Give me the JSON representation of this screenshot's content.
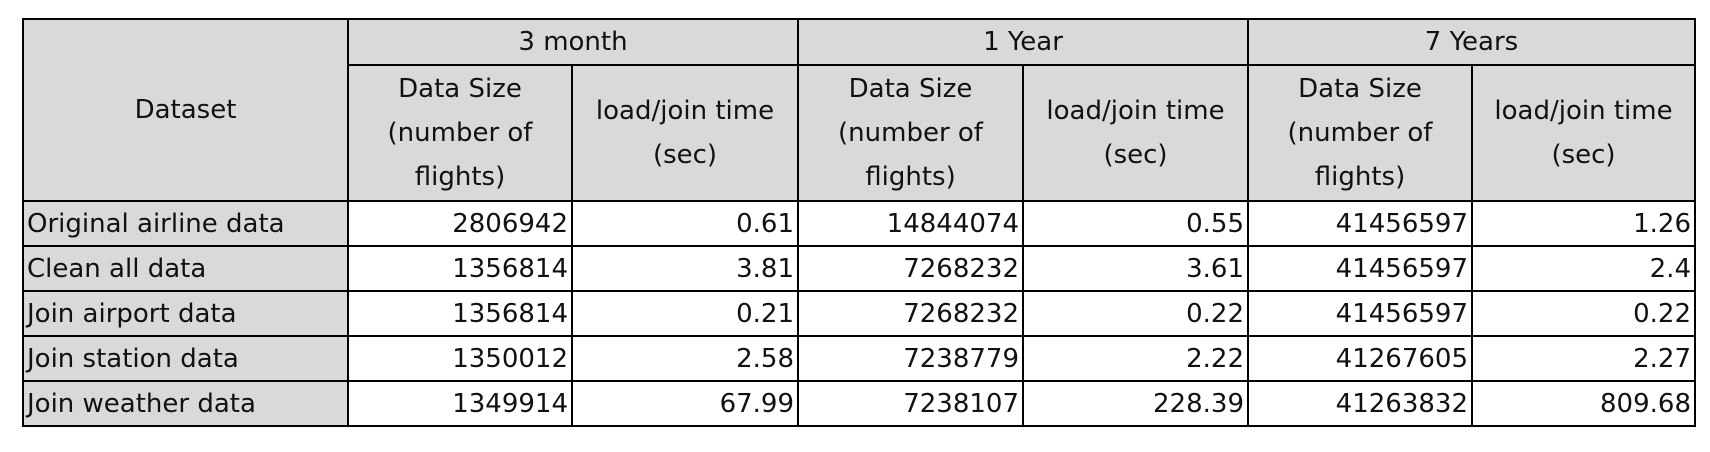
{
  "table": {
    "corner": "Dataset",
    "groups": [
      "3 month",
      "1 Year",
      "7 Years"
    ],
    "subheaders": [
      "Data Size (number of flights)",
      "load/join time (sec)",
      "Data Size (number of flights)",
      "load/join time (sec)",
      "Data Size (number of flights)",
      "load/join time (sec)"
    ],
    "rows": [
      {
        "label": "Original airline data",
        "values": [
          2806942,
          0.61,
          14844074,
          0.55,
          41456597,
          1.26
        ]
      },
      {
        "label": "Clean all data",
        "values": [
          1356814,
          3.81,
          7268232,
          3.61,
          41456597,
          2.4
        ]
      },
      {
        "label": "Join airport data",
        "values": [
          1356814,
          0.21,
          7268232,
          0.22,
          41456597,
          0.22
        ]
      },
      {
        "label": "Join station data",
        "values": [
          1350012,
          2.58,
          7238779,
          2.22,
          41267605,
          2.27
        ]
      },
      {
        "label": "Join weather data",
        "values": [
          1349914,
          67.99,
          7238107,
          228.39,
          41263832,
          809.68
        ]
      }
    ]
  }
}
